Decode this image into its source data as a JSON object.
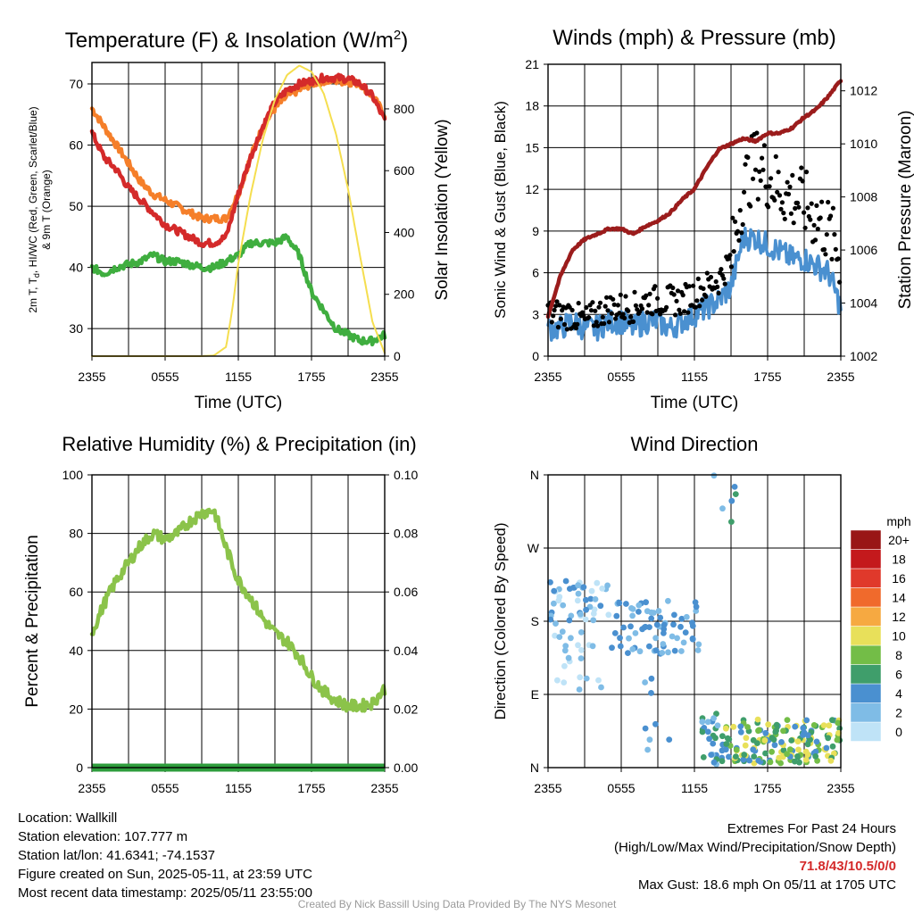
{
  "colors": {
    "maroon": "#9b1c1c",
    "red": "#d42a2a",
    "orange": "#f57f2a",
    "green": "#3fae3f",
    "yellow": "#f5de4f",
    "blue": "#4a90d0",
    "rh_green": "#8bc34a",
    "precip_green": "#2e9d3c",
    "extremes_red": "#d42a2a"
  },
  "chart_data": [
    {
      "id": "temperature",
      "type": "line",
      "title": "Temperature (F) & Insolation (W/m",
      "title_sup": "2",
      "title_end": ")",
      "ylabel_main": "2m T, T",
      "ylabel_sub": "d",
      "ylabel_rest": ", HI/WC (Red, Green, Scarlet/Blue)",
      "ylabel_line2": "& 9m T (Orange)",
      "y2label": "Solar Insolation (Yellow)",
      "xlabel": "Time (UTC)",
      "xticks": [
        "2355",
        "0555",
        "1155",
        "1755",
        "2355"
      ],
      "ylim": [
        25.5,
        73.5
      ],
      "yticks": [
        30,
        40,
        50,
        60,
        70
      ],
      "y2lim": [
        0,
        950
      ],
      "y2ticks": [
        0,
        200,
        400,
        600,
        800
      ],
      "series": [
        {
          "name": "9m T",
          "axis": "left",
          "color": "orange",
          "hours": [
            0,
            1,
            2,
            3,
            4,
            5,
            6,
            7,
            8,
            9,
            10,
            11,
            12,
            13,
            14,
            15,
            16,
            17,
            18,
            19,
            20,
            21,
            22,
            23,
            24
          ],
          "values": [
            66,
            63,
            60,
            57,
            54,
            52,
            51,
            50,
            49,
            48,
            48,
            48,
            52,
            58,
            63,
            66,
            68,
            69,
            70,
            70.5,
            70.5,
            70.3,
            70,
            68,
            65
          ]
        },
        {
          "name": "2m T",
          "axis": "left",
          "color": "red",
          "hours": [
            0,
            1,
            2,
            3,
            4,
            5,
            6,
            7,
            8,
            9,
            10,
            11,
            12,
            13,
            14,
            15,
            16,
            17,
            18,
            19,
            20,
            21,
            22,
            23,
            24
          ],
          "values": [
            62,
            58,
            56,
            53,
            51,
            49,
            47,
            46,
            45,
            44,
            44,
            45,
            52,
            58,
            63,
            67,
            69,
            70,
            70.5,
            71,
            71,
            70.8,
            70,
            68,
            64
          ]
        },
        {
          "name": "Td",
          "axis": "left",
          "color": "green",
          "hours": [
            0,
            1,
            2,
            3,
            4,
            5,
            6,
            7,
            8,
            9,
            10,
            11,
            12,
            13,
            14,
            15,
            16,
            17,
            18,
            19,
            20,
            21,
            22,
            23,
            24
          ],
          "values": [
            40,
            39,
            40,
            40.5,
            41,
            42,
            41,
            41,
            40.5,
            40,
            40,
            41,
            42,
            44,
            44,
            44,
            45,
            42,
            36,
            33,
            30,
            29,
            28,
            28,
            29
          ]
        },
        {
          "name": "Insolation",
          "axis": "right",
          "color": "yellow",
          "hours": [
            0,
            1,
            2,
            3,
            4,
            5,
            6,
            7,
            8,
            9,
            10,
            11,
            11.5,
            12,
            13,
            14,
            15,
            16,
            17,
            18,
            19,
            20,
            21,
            22,
            23,
            24
          ],
          "values": [
            0,
            0,
            0,
            0,
            0,
            0,
            0,
            0,
            0,
            0,
            2,
            30,
            150,
            300,
            520,
            700,
            830,
            910,
            940,
            920,
            850,
            720,
            540,
            320,
            110,
            10
          ]
        }
      ]
    },
    {
      "id": "winds",
      "type": "line",
      "title": "Winds (mph) & Pressure (mb)",
      "ylabel": "Sonic Wind & Gust (Blue, Black)",
      "y2label": "Station Pressure (Maroon)",
      "xlabel": "Time (UTC)",
      "xticks": [
        "2355",
        "0555",
        "1155",
        "1755",
        "2355"
      ],
      "ylim": [
        0,
        21
      ],
      "yticks": [
        0,
        3,
        6,
        9,
        12,
        15,
        18,
        21
      ],
      "y2lim": [
        1002,
        1013
      ],
      "y2ticks": [
        1002,
        1004,
        1006,
        1008,
        1010,
        1012
      ],
      "series": [
        {
          "name": "Sonic Wind",
          "axis": "left",
          "color": "blue",
          "hours": [
            0,
            1,
            2,
            3,
            4,
            5,
            6,
            7,
            8,
            9,
            10,
            11,
            12,
            13,
            14,
            15,
            16,
            17,
            18,
            19,
            20,
            21,
            22,
            23,
            24
          ],
          "values": [
            2,
            2,
            2.5,
            2,
            2,
            2.5,
            2.5,
            2,
            2.5,
            2.5,
            2,
            2.5,
            3,
            3.5,
            4,
            5,
            8.5,
            8.5,
            8,
            7.5,
            7,
            7,
            6.5,
            6,
            3.5
          ]
        },
        {
          "name": "Gust",
          "axis": "left",
          "color": "black",
          "hours": [
            0,
            1,
            2,
            3,
            4,
            5,
            6,
            7,
            8,
            9,
            10,
            11,
            12,
            13,
            14,
            15,
            16,
            17,
            18,
            19,
            20,
            21,
            22,
            23,
            24
          ],
          "values": [
            3,
            3,
            3,
            2.5,
            3,
            3.5,
            3.5,
            3.5,
            4,
            4,
            4,
            4,
            4.5,
            5,
            5.5,
            7,
            12,
            14,
            13,
            12,
            11.5,
            11,
            10,
            9,
            7
          ]
        },
        {
          "name": "Station Pressure",
          "axis": "right",
          "color": "maroon",
          "hours": [
            0,
            1,
            2,
            3,
            4,
            5,
            6,
            7,
            8,
            9,
            10,
            11,
            12,
            13,
            14,
            15,
            16,
            17,
            18,
            19,
            20,
            21,
            22,
            23,
            24
          ],
          "values": [
            1003.5,
            1005,
            1006,
            1006.4,
            1006.6,
            1006.8,
            1006.8,
            1006.6,
            1006.9,
            1007.1,
            1007.4,
            1007.9,
            1008.3,
            1009.1,
            1009.8,
            1010,
            1010.2,
            1010.1,
            1010.4,
            1010.4,
            1010.6,
            1011,
            1011.3,
            1011.8,
            1012.4
          ]
        }
      ]
    },
    {
      "id": "humidity",
      "type": "line",
      "title": "Relative Humidity (%) & Precipitation (in)",
      "ylabel": "Percent & Precipitation",
      "xticks": [
        "2355",
        "0555",
        "1155",
        "1755",
        "2355"
      ],
      "ylim": [
        0,
        100
      ],
      "yticks": [
        0,
        20,
        40,
        60,
        80,
        100
      ],
      "y2lim": [
        0,
        0.1
      ],
      "y2ticks": [
        "0.00",
        "0.02",
        "0.04",
        "0.06",
        "0.08",
        "0.10"
      ],
      "series": [
        {
          "name": "Relative Humidity",
          "axis": "left",
          "color": "rh_green",
          "hours": [
            0,
            1,
            2,
            3,
            4,
            5,
            6,
            7,
            8,
            9,
            10,
            11,
            12,
            13,
            14,
            15,
            16,
            17,
            18,
            19,
            20,
            21,
            22,
            23,
            24
          ],
          "values": [
            46,
            56,
            64,
            70,
            76,
            80,
            78,
            80,
            84,
            87,
            88,
            75,
            64,
            58,
            51,
            46,
            43,
            38,
            31,
            26,
            23,
            21,
            21,
            22,
            27
          ]
        },
        {
          "name": "Precipitation",
          "axis": "right",
          "color": "precip_green",
          "hours": [
            0,
            24
          ],
          "values": [
            0,
            0
          ]
        }
      ]
    },
    {
      "id": "direction",
      "type": "scatter",
      "title": "Wind Direction",
      "ylabel": "Direction (Colored By Speed)",
      "xticks": [
        "2355",
        "0555",
        "1155",
        "1755",
        "2355"
      ],
      "yticks": [
        "N",
        "E",
        "S",
        "W",
        "N"
      ],
      "ylim": [
        0,
        360
      ],
      "colorbar_title": "mph",
      "colorbar_labels": [
        "0",
        "2",
        "4",
        "6",
        "8",
        "10",
        "12",
        "14",
        "16",
        "18",
        "20+"
      ],
      "colorbar_colors": [
        "#bfe3f7",
        "#7fbce6",
        "#4a90d0",
        "#3f9e6b",
        "#73bd47",
        "#e8e05a",
        "#f6a941",
        "#f06a2c",
        "#e0392b",
        "#c4191c",
        "#991616"
      ],
      "clusters": [
        {
          "h0": 0,
          "h1": 5,
          "d0": 180,
          "d1": 230,
          "c": [
            0,
            2
          ],
          "n": 40
        },
        {
          "h0": 0.5,
          "h1": 4.5,
          "d0": 95,
          "d1": 185,
          "c": [
            0,
            1
          ],
          "n": 25
        },
        {
          "h0": 5,
          "h1": 12.5,
          "d0": 140,
          "d1": 205,
          "c": [
            1,
            2
          ],
          "n": 70
        },
        {
          "h0": 7.5,
          "h1": 10,
          "d0": 20,
          "d1": 120,
          "c": [
            1,
            2
          ],
          "n": 8
        },
        {
          "h0": 12.5,
          "h1": 14.5,
          "d0": 0,
          "d1": 70,
          "c": [
            1,
            3
          ],
          "n": 28
        },
        {
          "h0": 14.5,
          "h1": 24,
          "d0": 5,
          "d1": 60,
          "c": [
            2,
            5
          ],
          "n": 160
        },
        {
          "h0": 13.5,
          "h1": 15.5,
          "d0": 300,
          "d1": 360,
          "c": [
            1,
            3
          ],
          "n": 6
        }
      ]
    }
  ],
  "footer": {
    "location": "Location: Wallkill",
    "elevation": "Station elevation: 107.777 m",
    "latlon": "Station lat/lon: 41.6341; -74.1537",
    "created": "Figure created on Sun, 2025-05-11, at 23:59 UTC",
    "recent": "Most recent data timestamp: 2025/05/11 23:55:00",
    "extremes_title": "Extremes For Past 24 Hours",
    "extremes_subtitle": "(High/Low/Max Wind/Precipitation/Snow Depth)",
    "extremes_values": "71.8/43/10.5/0/0",
    "max_gust": "Max Gust: 18.6 mph On 05/11 at 1705 UTC",
    "credit": "Created By Nick Bassill Using Data Provided By The NYS Mesonet"
  }
}
